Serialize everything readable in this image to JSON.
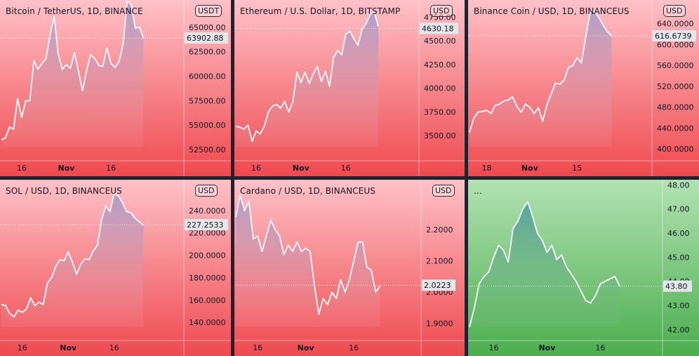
{
  "bg_red_top": "#ffc1c8",
  "bg_red_bottom": "#ee4a4f",
  "bg_green_top": "#b2e2b2",
  "bg_green_bottom": "#4cae4f",
  "line_color": "#eef0f4",
  "chart_data": [
    {
      "type": "area",
      "title": "Bitcoin / TetherUS, 1D, BINANCE",
      "currency": "USDT",
      "last_price": "63902.88",
      "ylim": [
        51500,
        67500
      ],
      "yticks": [
        "65000.00",
        "62500.00",
        "60000.00",
        "57500.00",
        "55000.00",
        "52500.00"
      ],
      "ytick_values": [
        65000,
        62500,
        60000,
        57500,
        55000,
        52500
      ],
      "xticks": [
        "16",
        "Nov",
        "16"
      ],
      "xtick_index": [
        5,
        16,
        27
      ],
      "values": [
        53500,
        53700,
        54800,
        54600,
        57700,
        55800,
        57500,
        57500,
        61600,
        60700,
        61300,
        61800,
        64200,
        66100,
        62300,
        60700,
        61200,
        60800,
        62400,
        60500,
        58500,
        60600,
        62200,
        61800,
        61100,
        61000,
        62900,
        61300,
        60900,
        61500,
        63300,
        67700,
        67300,
        64900,
        65000,
        63900
      ]
    },
    {
      "type": "area",
      "title": "Ethereum / U.S. Dollar, 1D, BITSTAMP",
      "currency": "USD",
      "last_price": "4630.18",
      "ylim": [
        3250,
        4900
      ],
      "yticks": [
        "4750.00",
        "4500.00",
        "4250.00",
        "4000.00",
        "3750.00",
        "3500.00"
      ],
      "ytick_values": [
        4750,
        4500,
        4250,
        4000,
        3750,
        3500
      ],
      "xticks": [
        "16",
        "Nov",
        "16"
      ],
      "xtick_index": [
        5,
        16,
        27
      ],
      "values": [
        3600,
        3590,
        3570,
        3610,
        3440,
        3550,
        3520,
        3600,
        3750,
        3810,
        3830,
        3790,
        3860,
        3750,
        3860,
        4170,
        4060,
        4170,
        4050,
        4150,
        4230,
        4070,
        4180,
        4020,
        4320,
        4400,
        4350,
        4570,
        4600,
        4520,
        4450,
        4620,
        4680,
        4780,
        4800,
        4650
      ]
    },
    {
      "type": "area",
      "title": "Binance Coin / USD, 1D, BINANCEUS",
      "currency": "USD",
      "last_price": "616.6739",
      "ylim": [
        380,
        680
      ],
      "yticks": [
        "640.0000",
        "600.0000",
        "560.0000",
        "520.0000",
        "480.0000",
        "440.0000",
        "400.0000"
      ],
      "ytick_values": [
        640,
        600,
        560,
        520,
        480,
        440,
        400
      ],
      "xticks": [
        "18",
        "Nov",
        "15"
      ],
      "xtick_index": [
        4,
        14,
        25
      ],
      "values": [
        432,
        459,
        471,
        472,
        474,
        468,
        484,
        486,
        492,
        494,
        500,
        482,
        470,
        486,
        480,
        468,
        479,
        453,
        485,
        506,
        526,
        524,
        532,
        556,
        560,
        575,
        565,
        615,
        660,
        664,
        653,
        638,
        625,
        617
      ]
    },
    {
      "type": "area",
      "title": "SOL / USD, 1D, BINANCEUS",
      "currency": "USD",
      "last_price": "227.2533",
      "ylim": [
        125,
        265
      ],
      "yticks": [
        "240.0000",
        "220.0000",
        "200.0000",
        "180.0000",
        "160.0000",
        "140.0000"
      ],
      "ytick_values": [
        240,
        220,
        200,
        180,
        160,
        140
      ],
      "xticks": [
        "16",
        "Nov",
        "16"
      ],
      "xtick_index": [
        5,
        16,
        27
      ],
      "values": [
        156,
        155,
        148,
        145,
        151,
        149,
        152,
        162,
        155,
        158,
        156,
        175,
        180,
        190,
        196,
        195,
        203,
        194,
        183,
        192,
        197,
        196,
        204,
        209,
        232,
        244,
        239,
        255,
        253,
        247,
        239,
        238,
        233,
        230,
        227
      ]
    },
    {
      "type": "area",
      "title": "Cardano / USD, 1D, BINANCEUS",
      "currency": "USD",
      "last_price": "2.0223",
      "ylim": [
        1.85,
        2.35
      ],
      "yticks": [
        "2.2000",
        "2.1000",
        "2.0000",
        "1.9000"
      ],
      "ytick_values": [
        2.2,
        2.1,
        2.0,
        1.9
      ],
      "xticks": [
        "16",
        "Nov",
        "16"
      ],
      "xtick_index": [
        5,
        16,
        27
      ],
      "values": [
        2.24,
        2.31,
        2.26,
        2.29,
        2.17,
        2.18,
        2.13,
        2.18,
        2.23,
        2.2,
        2.18,
        2.12,
        2.15,
        2.13,
        2.16,
        2.13,
        2.14,
        2.13,
        2.02,
        1.93,
        1.98,
        1.96,
        2.0,
        1.98,
        2.04,
        2.0,
        2.04,
        2.1,
        2.16,
        2.16,
        2.08,
        2.07,
        2.0,
        2.02
      ]
    },
    {
      "type": "area",
      "title": "...",
      "currency": "",
      "last_price": "43.80",
      "ylim": [
        41.6,
        48.1
      ],
      "yticks": [
        "48.00",
        "47.00",
        "46.00",
        "45.00",
        "44.00",
        "43.00",
        "42.00"
      ],
      "ytick_values": [
        48,
        47,
        46,
        45,
        44,
        43,
        42
      ],
      "xticks": [
        "16",
        "Nov",
        "16"
      ],
      "xtick_index": [
        5,
        16,
        27
      ],
      "values": [
        42.1,
        42.9,
        43.9,
        44.2,
        44.4,
        45.0,
        45.5,
        45.3,
        44.8,
        46.2,
        46.5,
        47.0,
        47.3,
        46.7,
        46.0,
        45.7,
        45.2,
        45.5,
        44.9,
        45.1,
        44.6,
        44.3,
        44.0,
        43.6,
        43.2,
        43.1,
        43.4,
        43.9,
        44.0,
        44.1,
        44.2,
        43.8
      ]
    }
  ]
}
